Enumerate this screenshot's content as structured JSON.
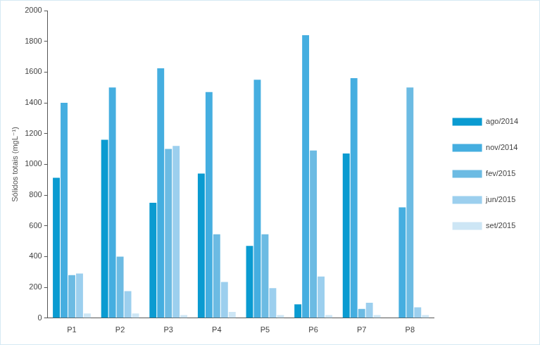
{
  "chart_data": {
    "type": "bar",
    "y_label": "Sólidos totais (mgL⁻¹)",
    "categories": [
      "P1",
      "P2",
      "P3",
      "P4",
      "P5",
      "P6",
      "P7",
      "P8"
    ],
    "series": [
      {
        "name": "ago/2014",
        "color": "#0a9bd1",
        "values": [
          913,
          1160,
          750,
          940,
          470,
          90,
          1070,
          null
        ]
      },
      {
        "name": "nov/2014",
        "color": "#45aee0",
        "values": [
          1400,
          1500,
          1625,
          1470,
          1550,
          1840,
          1560,
          720
        ]
      },
      {
        "name": "fev/2015",
        "color": "#6cbbe3",
        "values": [
          280,
          400,
          1100,
          545,
          545,
          1090,
          60,
          1500
        ]
      },
      {
        "name": "jun/2015",
        "color": "#9ccfee",
        "values": [
          290,
          175,
          1120,
          235,
          195,
          270,
          100,
          70
        ]
      },
      {
        "name": "set/2015",
        "color": "#cde6f5",
        "values": [
          30,
          30,
          20,
          40,
          20,
          20,
          20,
          20
        ]
      }
    ],
    "ylim": [
      0,
      2000
    ],
    "yticks": [
      0,
      200,
      400,
      600,
      800,
      1000,
      1200,
      1400,
      1600,
      1800,
      2000
    ],
    "grid": false,
    "legend": "right"
  }
}
